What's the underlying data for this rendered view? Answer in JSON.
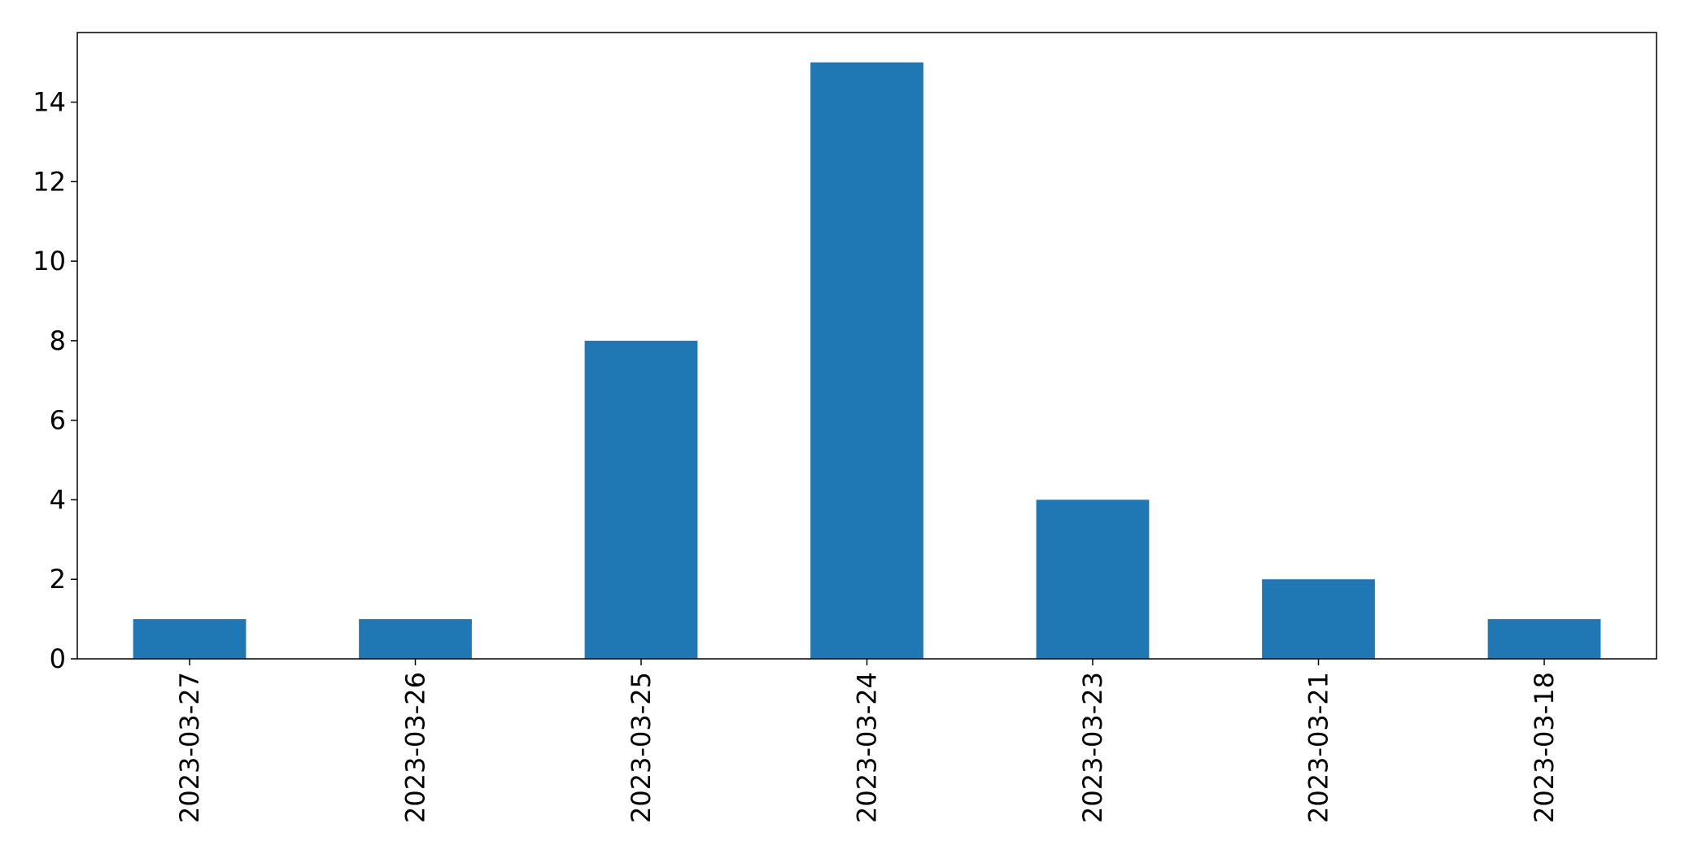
{
  "chart_data": {
    "type": "bar",
    "title": "",
    "xlabel": "",
    "ylabel": "",
    "categories": [
      "2023-03-27",
      "2023-03-26",
      "2023-03-25",
      "2023-03-24",
      "2023-03-23",
      "2023-03-21",
      "2023-03-18"
    ],
    "values": [
      1,
      1,
      8,
      15,
      4,
      2,
      1
    ],
    "ylim": [
      0,
      15.75
    ],
    "yticks": [
      0,
      2,
      4,
      6,
      8,
      10,
      12,
      14
    ],
    "x_tick_rotation": "vertical",
    "grid": false,
    "legend": "none",
    "bar_color": "#1f77b4"
  }
}
